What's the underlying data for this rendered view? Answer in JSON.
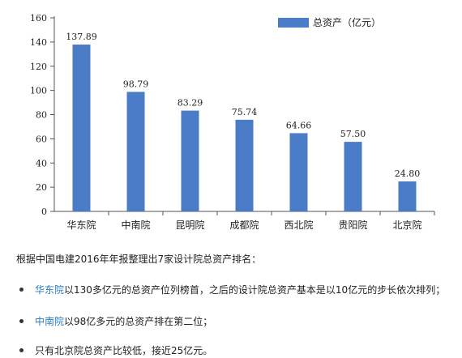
{
  "chart_data": {
    "type": "bar",
    "categories": [
      "华东院",
      "中南院",
      "昆明院",
      "成都院",
      "西北院",
      "贵阳院",
      "北京院"
    ],
    "values": [
      137.89,
      98.79,
      83.29,
      75.74,
      64.66,
      57.5,
      24.8
    ],
    "value_labels": [
      "137.89",
      "98.79",
      "83.29",
      "75.74",
      "64.66",
      "57.50",
      "24.80"
    ],
    "yticks": [
      0,
      20,
      40,
      60,
      80,
      100,
      120,
      140,
      160
    ],
    "ylim": [
      0,
      160
    ],
    "legend": {
      "label": "总资产（亿元）",
      "position": "top-right"
    },
    "bar_color": "#4a7cc7",
    "grid": false
  },
  "caption": "根据中国电建2016年年报整理出7家设计院总资产排名：",
  "bullets": [
    {
      "highlight": "华东院",
      "text": "以130多亿元的总资产位列榜首，之后的设计院总资产基本是以10亿元的步长依次排列；"
    },
    {
      "highlight": "中南院",
      "text": "以98亿多元的总资产排在第二位；"
    },
    {
      "highlight": "",
      "text": "只有北京院总资产比较低，接近25亿元。"
    }
  ]
}
